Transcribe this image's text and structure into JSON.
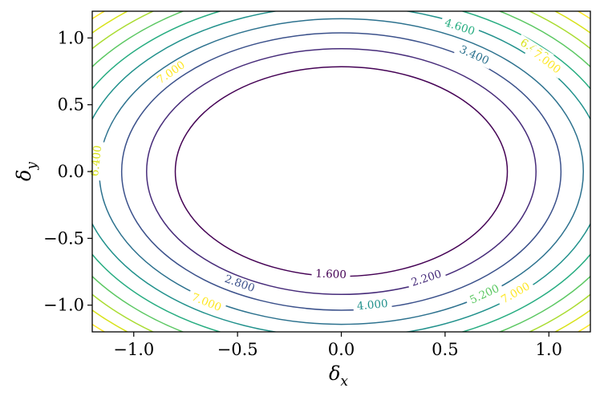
{
  "chart_data": {
    "type": "contour",
    "xlabel": "δ",
    "xlabel_sub": "x",
    "ylabel": "δ",
    "ylabel_sub": "y",
    "xlim": [
      -1.2,
      1.2
    ],
    "ylim": [
      -1.2,
      1.2
    ],
    "xticks": [
      -1.0,
      -0.5,
      0.0,
      0.5,
      1.0
    ],
    "yticks": [
      -1.0,
      -0.5,
      0.0,
      0.5,
      1.0
    ],
    "xtick_labels": [
      "−1.0",
      "−0.5",
      "0.0",
      "0.5",
      "1.0"
    ],
    "ytick_labels": [
      "−1.0",
      "−0.5",
      "0.0",
      "0.5",
      "1.0"
    ],
    "function": "f(x, y) = 2.5·x² + 2.6·y²",
    "levels": [
      1.6,
      2.2,
      2.8,
      3.4,
      4.0,
      4.6,
      5.2,
      5.8,
      6.4,
      7.0
    ],
    "colormap": "viridis",
    "level_colors": [
      "#440154",
      "#472c7a",
      "#3b518b",
      "#2c718e",
      "#21918c",
      "#27ad81",
      "#5cc863",
      "#aadc32",
      "#d8e219",
      "#fde725"
    ],
    "grid": false,
    "labels": [
      {
        "text": "1.600",
        "level": 1.6,
        "x": -0.05,
        "y": -0.77,
        "color": "#440154"
      },
      {
        "text": "2.200",
        "level": 2.2,
        "x": 0.41,
        "y": -0.8,
        "color": "#472c7a"
      },
      {
        "text": "2.800",
        "level": 2.8,
        "x": -0.49,
        "y": -0.84,
        "color": "#3b518b"
      },
      {
        "text": "3.400",
        "level": 3.4,
        "x": 0.64,
        "y": 0.87,
        "color": "#2c718e"
      },
      {
        "text": "4.000",
        "level": 4.0,
        "x": 0.15,
        "y": -1.0,
        "color": "#21918c"
      },
      {
        "text": "4.600",
        "level": 4.6,
        "x": 0.57,
        "y": 1.08,
        "color": "#27ad81"
      },
      {
        "text": "5.200",
        "level": 5.2,
        "x": 0.69,
        "y": -0.92,
        "color": "#5cc863"
      },
      {
        "text": "5.800",
        "level": 5.8,
        "x": 0.97,
        "y": 0.82,
        "color": "#aadc32"
      },
      {
        "text": "6.400",
        "level": 6.4,
        "x": 0.93,
        "y": 0.91,
        "color": "#d8e219"
      },
      {
        "text": "6.400",
        "level": 6.4,
        "x": -1.18,
        "y": 0.08,
        "color": "#d8e219"
      },
      {
        "text": "7.000",
        "level": 7.0,
        "x": -0.82,
        "y": 0.74,
        "color": "#fde725"
      },
      {
        "text": "7.000",
        "level": 7.0,
        "x": 0.99,
        "y": 0.82,
        "color": "#fde725"
      },
      {
        "text": "7.000",
        "level": 7.0,
        "x": -0.65,
        "y": -0.98,
        "color": "#fde725"
      },
      {
        "text": "7.000",
        "level": 7.0,
        "x": 0.84,
        "y": -0.91,
        "color": "#fde725"
      }
    ]
  }
}
